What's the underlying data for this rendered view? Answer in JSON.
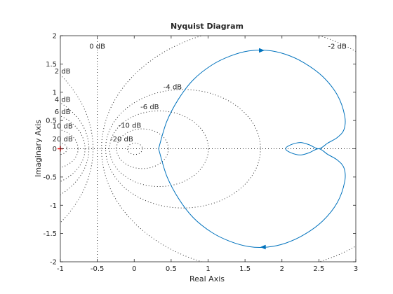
{
  "chart_data": {
    "type": "line",
    "title": "Nyquist Diagram",
    "xlabel": "Real Axis",
    "ylabel": "Imaginary Axis",
    "xlim": [
      -1,
      3
    ],
    "ylim": [
      -2,
      2
    ],
    "xticks": [
      "-1",
      "-0.5",
      "0",
      "0.5",
      "1",
      "1.5",
      "2",
      "2.5",
      "3"
    ],
    "yticks": [
      "2",
      "1.5",
      "1",
      "0.5",
      "0",
      "-0.5",
      "-1",
      "-1.5",
      "-2"
    ],
    "grid": "m-circles (dotted)",
    "critical_point": [
      -1,
      0
    ],
    "db_labels": [
      {
        "text": "0 dB",
        "x": -0.5,
        "y": 1.82
      },
      {
        "text": "-2 dB",
        "x": 2.75,
        "y": 1.82
      },
      {
        "text": "2 dB",
        "x": -0.97,
        "y": 1.38
      },
      {
        "text": "-4 dB",
        "x": 0.52,
        "y": 1.1
      },
      {
        "text": "4 dB",
        "x": -0.97,
        "y": 0.88
      },
      {
        "text": "-6 dB",
        "x": 0.21,
        "y": 0.75
      },
      {
        "text": "6 dB",
        "x": -0.97,
        "y": 0.66
      },
      {
        "text": "-10 dB",
        "x": -0.06,
        "y": 0.42
      },
      {
        "text": "10 dB",
        "x": -0.97,
        "y": 0.41
      },
      {
        "text": "-20 dB",
        "x": -0.17,
        "y": 0.18
      },
      {
        "text": "20 dB",
        "x": -0.97,
        "y": 0.18
      }
    ],
    "series": [
      {
        "color": "#0072bd",
        "x": [
          0.33,
          0.44,
          0.6,
          0.8,
          1.05,
          1.3,
          1.55,
          1.8,
          2.05,
          2.3,
          2.55,
          2.75,
          2.85,
          2.84,
          2.75,
          2.62,
          2.5,
          2.37,
          2.25,
          2.12,
          2.05,
          2.12,
          2.25,
          2.37,
          2.5,
          2.62,
          2.75,
          2.84,
          2.85,
          2.75,
          2.55,
          2.3,
          2.05,
          1.8,
          1.55,
          1.3,
          1.05,
          0.8,
          0.6,
          0.44,
          0.33
        ],
        "y": [
          0.0,
          0.48,
          0.88,
          1.22,
          1.48,
          1.64,
          1.73,
          1.74,
          1.67,
          1.52,
          1.28,
          0.95,
          0.58,
          0.34,
          0.2,
          0.1,
          0.0,
          0.07,
          0.11,
          0.07,
          0.0,
          -0.07,
          -0.11,
          -0.07,
          0.0,
          -0.1,
          -0.2,
          -0.34,
          -0.58,
          -0.95,
          -1.28,
          -1.52,
          -1.67,
          -1.74,
          -1.73,
          -1.64,
          -1.48,
          -1.22,
          -0.88,
          -0.48,
          0.0
        ]
      }
    ],
    "arrows": [
      {
        "x": 1.72,
        "y": 1.74,
        "direction": "right"
      },
      {
        "x": 1.75,
        "y": -1.74,
        "direction": "left"
      }
    ]
  }
}
